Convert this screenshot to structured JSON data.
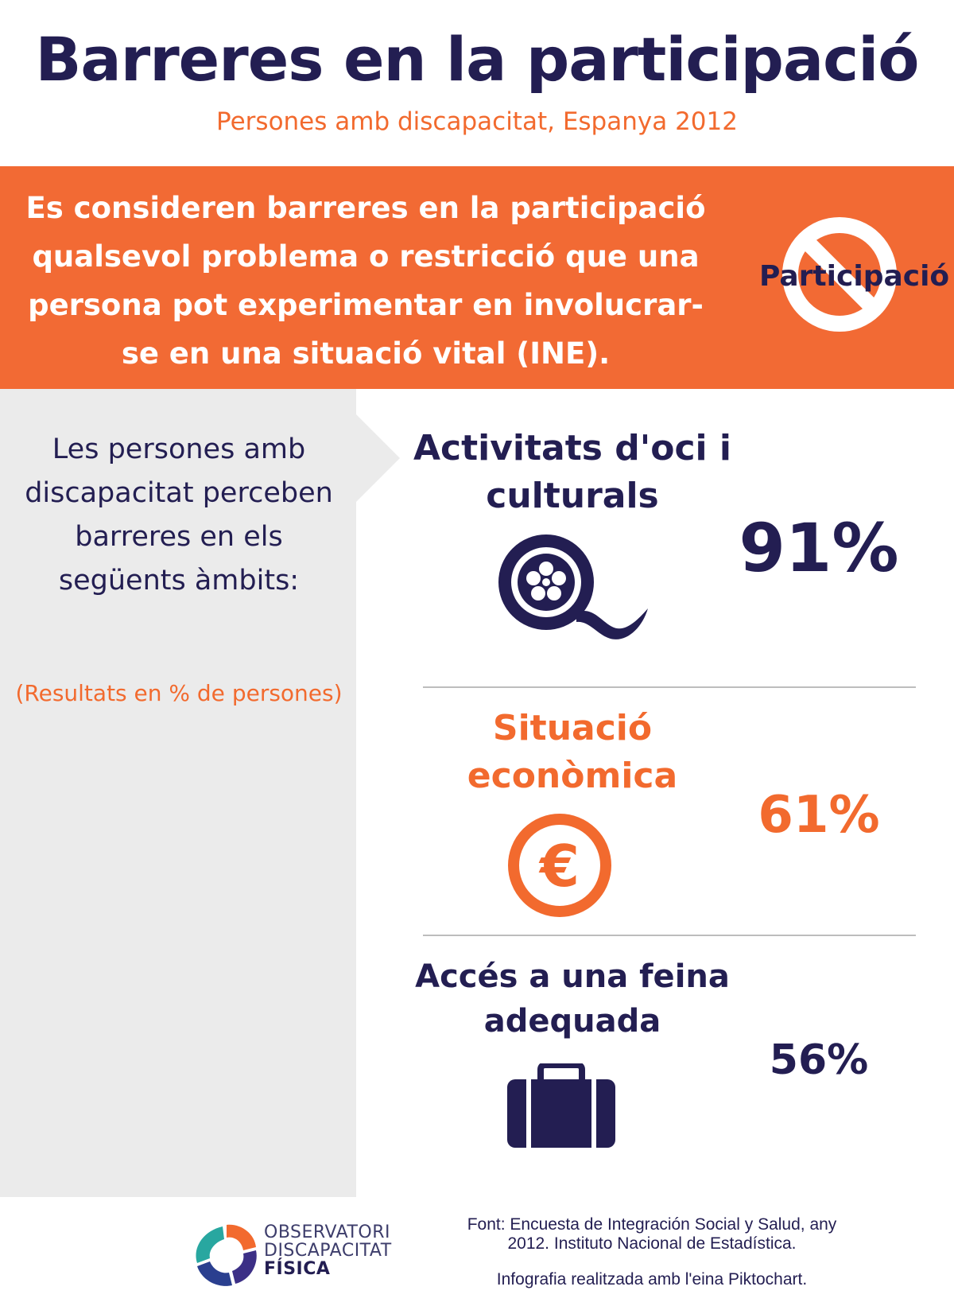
{
  "header": {
    "title": "Barreres en la participació",
    "subtitle": "Persones amb discapacitat, Espanya 2012"
  },
  "definition": {
    "text": "Es consideren barreres en la participació qualsevol problema o restricció que una persona pot experimentar en involucrar-se en una situació vital (INE).",
    "icon": "no-participation-icon",
    "icon_label": "Participació"
  },
  "intro": {
    "text": "Les persones amb discapacitat perceben barreres en els següents àmbits:",
    "note": "(Resultats en % de persones)"
  },
  "categories": [
    {
      "label": "Activitats d'oci i culturals",
      "value": "91%",
      "icon": "film-reel-icon",
      "color": "#231e52"
    },
    {
      "label": "Situació econòmica",
      "value": "61%",
      "icon": "euro-icon",
      "color": "#f26a2e"
    },
    {
      "label": "Accés a una feina adequada",
      "value": "56%",
      "icon": "briefcase-icon",
      "color": "#231e52"
    }
  ],
  "footer": {
    "logo_line1": "OBSERVATORI",
    "logo_line2": "DISCAPACITAT",
    "logo_line3": "FÍSICA",
    "source": "Font: Encuesta de Integración Social y Salud, any 2012. Instituto Nacional de Estadística.",
    "credit": "Infografia realitzada amb l'eina Piktochart."
  },
  "colors": {
    "navy": "#231e52",
    "orange": "#f26a2e",
    "panel_grey": "#ebebeb"
  }
}
